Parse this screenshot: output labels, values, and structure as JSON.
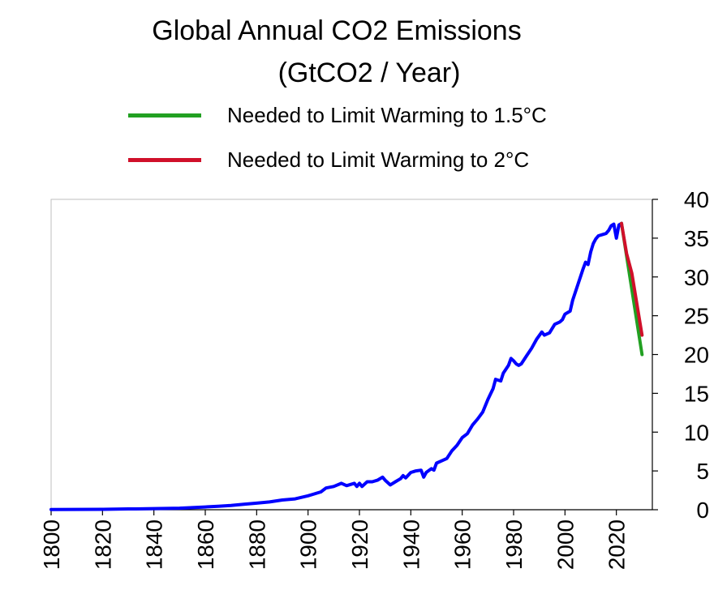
{
  "chart_data": {
    "type": "line",
    "title": "Global Annual CO2 Emissions",
    "subtitle": "(GtCO2 / Year)",
    "xlabel": "",
    "ylabel": "",
    "xlim": [
      1800,
      2034
    ],
    "ylim": [
      0,
      40
    ],
    "x_ticks": [
      "1800",
      "1820",
      "1840",
      "1860",
      "1880",
      "1900",
      "1920",
      "1940",
      "1960",
      "1980",
      "2000",
      "2020"
    ],
    "y_ticks": [
      "0",
      "5",
      "10",
      "15",
      "20",
      "25",
      "30",
      "35",
      "40"
    ],
    "y_axis_side": "right",
    "grid": false,
    "legend_position": "top",
    "colors": {
      "history": "#0000ff",
      "limit_1_5": "#22a022",
      "limit_2": "#d0102a"
    },
    "series": [
      {
        "key": "history",
        "color": "#0000ff",
        "points": [
          [
            1800,
            0.03
          ],
          [
            1810,
            0.04
          ],
          [
            1820,
            0.05
          ],
          [
            1830,
            0.1
          ],
          [
            1833,
            0.1
          ],
          [
            1840,
            0.15
          ],
          [
            1850,
            0.2
          ],
          [
            1855,
            0.27
          ],
          [
            1860,
            0.35
          ],
          [
            1865,
            0.45
          ],
          [
            1870,
            0.55
          ],
          [
            1875,
            0.7
          ],
          [
            1880,
            0.85
          ],
          [
            1885,
            1.0
          ],
          [
            1890,
            1.25
          ],
          [
            1895,
            1.4
          ],
          [
            1900,
            1.8
          ],
          [
            1905,
            2.3
          ],
          [
            1907,
            2.8
          ],
          [
            1910,
            3.0
          ],
          [
            1913,
            3.4
          ],
          [
            1915,
            3.1
          ],
          [
            1918,
            3.4
          ],
          [
            1919,
            3.0
          ],
          [
            1920,
            3.4
          ],
          [
            1921,
            3.0
          ],
          [
            1923,
            3.6
          ],
          [
            1925,
            3.6
          ],
          [
            1927,
            3.8
          ],
          [
            1929,
            4.2
          ],
          [
            1930,
            3.8
          ],
          [
            1932,
            3.2
          ],
          [
            1934,
            3.6
          ],
          [
            1936,
            4.0
          ],
          [
            1937,
            4.4
          ],
          [
            1938,
            4.1
          ],
          [
            1940,
            4.8
          ],
          [
            1942,
            5.0
          ],
          [
            1944,
            5.1
          ],
          [
            1945,
            4.2
          ],
          [
            1946,
            4.8
          ],
          [
            1948,
            5.3
          ],
          [
            1949,
            5.1
          ],
          [
            1950,
            6.0
          ],
          [
            1952,
            6.3
          ],
          [
            1954,
            6.6
          ],
          [
            1956,
            7.6
          ],
          [
            1958,
            8.3
          ],
          [
            1960,
            9.3
          ],
          [
            1962,
            9.8
          ],
          [
            1964,
            10.9
          ],
          [
            1966,
            11.7
          ],
          [
            1968,
            12.6
          ],
          [
            1970,
            14.2
          ],
          [
            1972,
            15.6
          ],
          [
            1973,
            16.8
          ],
          [
            1974,
            16.7
          ],
          [
            1975,
            16.6
          ],
          [
            1976,
            17.6
          ],
          [
            1978,
            18.6
          ],
          [
            1979,
            19.5
          ],
          [
            1980,
            19.2
          ],
          [
            1981,
            18.8
          ],
          [
            1982,
            18.6
          ],
          [
            1983,
            18.8
          ],
          [
            1985,
            19.8
          ],
          [
            1987,
            20.8
          ],
          [
            1989,
            22.0
          ],
          [
            1991,
            22.9
          ],
          [
            1992,
            22.5
          ],
          [
            1994,
            22.8
          ],
          [
            1996,
            23.9
          ],
          [
            1998,
            24.2
          ],
          [
            1999,
            24.5
          ],
          [
            2000,
            25.2
          ],
          [
            2002,
            25.6
          ],
          [
            2003,
            27.0
          ],
          [
            2005,
            29.0
          ],
          [
            2007,
            31.0
          ],
          [
            2008,
            31.9
          ],
          [
            2009,
            31.6
          ],
          [
            2010,
            33.2
          ],
          [
            2011,
            34.3
          ],
          [
            2012,
            34.9
          ],
          [
            2013,
            35.3
          ],
          [
            2015,
            35.5
          ],
          [
            2016,
            35.6
          ],
          [
            2017,
            36.0
          ],
          [
            2018,
            36.6
          ],
          [
            2019,
            36.8
          ],
          [
            2020,
            35.0
          ],
          [
            2021,
            36.7
          ],
          [
            2022,
            36.9
          ]
        ]
      },
      {
        "key": "limit_1_5",
        "name": "Needed to Limit Warming to 1.5°C",
        "color": "#22a022",
        "points": [
          [
            2022,
            36.9
          ],
          [
            2030,
            20.0
          ]
        ]
      },
      {
        "key": "limit_2",
        "name": "Needed to Limit Warming to 2°C",
        "color": "#d0102a",
        "points": [
          [
            2022,
            36.9
          ],
          [
            2024,
            33.0
          ],
          [
            2026,
            30.5
          ],
          [
            2030,
            22.5
          ]
        ]
      }
    ]
  }
}
